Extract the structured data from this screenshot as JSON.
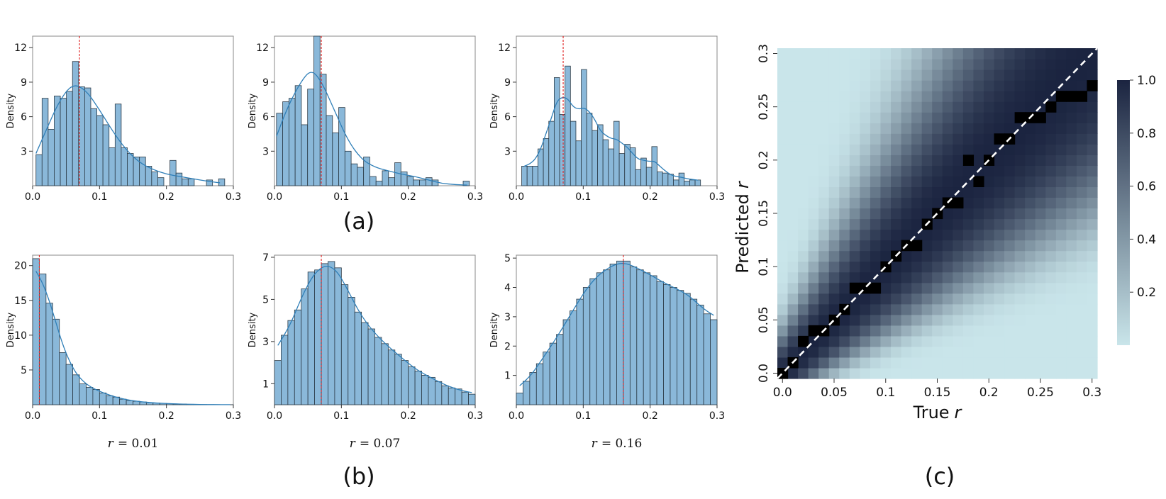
{
  "figure": {
    "panel_labels": [
      "(a)",
      "(b)",
      "(c)"
    ],
    "colors": {
      "bar_fill": "#8ab8d9",
      "bar_edge": "#2b3a46",
      "kde_line": "#2f7fb8",
      "mean_line": "#e02020",
      "axis": "#333333",
      "frame": "#888888",
      "diagonal": "#ffffff",
      "cmap_low": "#c9e5ea",
      "cmap_high": "#1b2440",
      "argmax_cell": "#000000"
    }
  },
  "chart_data": [
    {
      "id": "a1",
      "type": "bar",
      "panel": "(a)",
      "ylabel": "Density",
      "xlim": [
        0,
        0.3
      ],
      "ylim": [
        0,
        13
      ],
      "xticks": [
        "0.0",
        "0.1",
        "0.2",
        "0.3"
      ],
      "yticks": [
        "3",
        "6",
        "9",
        "12"
      ],
      "mean": 0.07,
      "bin_start": 0.005,
      "bin_width": 0.0091,
      "values": [
        2.7,
        7.6,
        4.9,
        7.8,
        7.6,
        8.2,
        10.8,
        8.6,
        8.5,
        6.7,
        6.1,
        5.3,
        3.3,
        7.1,
        3.3,
        2.8,
        2.5,
        2.5,
        1.7,
        1.2,
        0.7,
        0,
        2.2,
        1.1,
        0.6,
        0.6,
        0,
        0,
        0.5,
        0,
        0.6
      ],
      "kde": [
        [
          0.005,
          2.8
        ],
        [
          0.02,
          4.8
        ],
        [
          0.04,
          7.4
        ],
        [
          0.06,
          8.9
        ],
        [
          0.08,
          8.3
        ],
        [
          0.1,
          6.6
        ],
        [
          0.12,
          4.7
        ],
        [
          0.14,
          3.1
        ],
        [
          0.16,
          2.0
        ],
        [
          0.18,
          1.4
        ],
        [
          0.2,
          1.0
        ],
        [
          0.22,
          0.8
        ],
        [
          0.24,
          0.6
        ],
        [
          0.26,
          0.4
        ],
        [
          0.28,
          0.25
        ]
      ]
    },
    {
      "id": "a2",
      "type": "bar",
      "panel": "(a)",
      "ylabel": "Density",
      "xlim": [
        0,
        0.3
      ],
      "ylim": [
        0,
        13
      ],
      "xticks": [
        "0.0",
        "0.1",
        "0.2",
        "0.3"
      ],
      "yticks": [
        "3",
        "6",
        "9",
        "12"
      ],
      "mean": 0.07,
      "bin_start": 0.003,
      "bin_width": 0.0093,
      "values": [
        6.3,
        7.3,
        7.6,
        8.7,
        5.3,
        8.4,
        13.2,
        9.7,
        6.1,
        4.6,
        6.8,
        3.0,
        1.9,
        1.6,
        2.5,
        0.8,
        0.4,
        1.3,
        0.7,
        2.0,
        1.2,
        0.8,
        0.5,
        0.5,
        0.7,
        0.5,
        0,
        0,
        0,
        0,
        0.4
      ],
      "kde": [
        [
          0.003,
          4.3
        ],
        [
          0.02,
          6.9
        ],
        [
          0.04,
          9.1
        ],
        [
          0.055,
          10.1
        ],
        [
          0.07,
          9.1
        ],
        [
          0.09,
          6.5
        ],
        [
          0.11,
          3.9
        ],
        [
          0.13,
          2.3
        ],
        [
          0.15,
          1.6
        ],
        [
          0.17,
          1.3
        ],
        [
          0.19,
          1.0
        ],
        [
          0.21,
          0.8
        ],
        [
          0.23,
          0.5
        ],
        [
          0.25,
          0.2
        ],
        [
          0.27,
          0.1
        ],
        [
          0.288,
          0.05
        ]
      ]
    },
    {
      "id": "a3",
      "type": "bar",
      "panel": "(a)",
      "ylabel": "Density",
      "xlim": [
        0,
        0.3
      ],
      "ylim": [
        0,
        13
      ],
      "xticks": [
        "0.0",
        "0.1",
        "0.2",
        "0.3"
      ],
      "yticks": [
        "3",
        "6",
        "9",
        "12"
      ],
      "mean": 0.07,
      "bin_start": 0.008,
      "bin_width": 0.0081,
      "values": [
        1.7,
        1.7,
        1.7,
        3.2,
        4.1,
        5.6,
        9.4,
        6.2,
        10.4,
        5.6,
        3.9,
        10.1,
        6.3,
        4.8,
        5.3,
        4.0,
        3.2,
        5.6,
        2.8,
        3.6,
        3.3,
        1.4,
        2.4,
        1.6,
        3.4,
        1.2,
        1.1,
        1.0,
        0.5,
        1.1,
        0.4,
        0.5,
        0.5
      ]
    },
    {
      "id": "b1",
      "type": "bar",
      "panel": "(b)",
      "ylabel": "Density",
      "xlim": [
        0,
        0.3
      ],
      "ylim": [
        0,
        21.5
      ],
      "xticks": [
        "0.0",
        "0.1",
        "0.2",
        "0.3"
      ],
      "yticks": [
        "5",
        "10",
        "15",
        "20"
      ],
      "mean": 0.01,
      "caption_var": "r",
      "caption": "= 0.01",
      "bin_start": 0.0,
      "bin_width": 0.01,
      "values": [
        21.0,
        18.8,
        14.6,
        12.3,
        7.5,
        5.8,
        4.3,
        3.0,
        2.5,
        2.2,
        1.7,
        1.3,
        1.1,
        0.8,
        0.6,
        0.5,
        0.4,
        0.3,
        0.25,
        0.2,
        0.15,
        0.1,
        0.1,
        0.05,
        0.05,
        0.03,
        0.02,
        0.02,
        0.01,
        0.01
      ]
    },
    {
      "id": "b2",
      "type": "bar",
      "panel": "(b)",
      "ylabel": "Density",
      "xlim": [
        0,
        0.3
      ],
      "ylim": [
        0,
        7.1
      ],
      "xticks": [
        "0.0",
        "0.1",
        "0.2",
        "0.3"
      ],
      "yticks": [
        "1",
        "3",
        "5",
        "7"
      ],
      "mean": 0.07,
      "caption_var": "r",
      "caption": "= 0.07",
      "bin_start": 0.0,
      "bin_width": 0.01,
      "values": [
        2.1,
        3.3,
        4.0,
        4.5,
        5.5,
        6.3,
        6.4,
        6.7,
        6.8,
        6.5,
        5.7,
        5.1,
        4.4,
        3.9,
        3.6,
        3.2,
        2.9,
        2.6,
        2.4,
        2.1,
        1.8,
        1.6,
        1.4,
        1.3,
        1.1,
        0.9,
        0.8,
        0.75,
        0.6,
        0.5
      ]
    },
    {
      "id": "b3",
      "type": "bar",
      "panel": "(b)",
      "ylabel": "Density",
      "xlim": [
        0,
        0.3
      ],
      "ylim": [
        0,
        5.1
      ],
      "xticks": [
        "0.0",
        "0.1",
        "0.2",
        "0.3"
      ],
      "yticks": [
        "1",
        "2",
        "3",
        "4",
        "5"
      ],
      "mean": 0.16,
      "caption_var": "r",
      "caption": "= 0.16",
      "bin_start": 0.0,
      "bin_width": 0.01,
      "values": [
        0.4,
        0.8,
        1.1,
        1.4,
        1.8,
        2.1,
        2.4,
        2.9,
        3.2,
        3.6,
        4.0,
        4.3,
        4.5,
        4.6,
        4.8,
        4.9,
        4.9,
        4.7,
        4.6,
        4.5,
        4.4,
        4.2,
        4.1,
        4.0,
        3.9,
        3.8,
        3.6,
        3.4,
        3.1,
        2.9
      ]
    },
    {
      "id": "c",
      "type": "heatmap",
      "panel": "(c)",
      "xlabel_prefix": "True",
      "ylabel_prefix": "Predicted",
      "axis_var": "r",
      "xlim": [
        0,
        0.3
      ],
      "ylim": [
        0,
        0.3
      ],
      "xticks": [
        "0.0",
        "0.05",
        "0.1",
        "0.15",
        "0.2",
        "0.25",
        "0.3"
      ],
      "yticks": [
        "0.0",
        "0.05",
        "0.1",
        "0.15",
        "0.2",
        "0.25",
        "0.3"
      ],
      "grid_size": 31,
      "value_range": [
        0,
        1
      ],
      "colorbar_ticks": [
        "0.2",
        "0.4",
        "0.6",
        "0.8",
        "1.0"
      ],
      "colorbar_range": [
        0.0,
        1.0
      ],
      "argmax_cells": [
        [
          0,
          0
        ],
        [
          1,
          1
        ],
        [
          2,
          3
        ],
        [
          3,
          4
        ],
        [
          4,
          4
        ],
        [
          5,
          5
        ],
        [
          6,
          6
        ],
        [
          7,
          8
        ],
        [
          8,
          8
        ],
        [
          9,
          8
        ],
        [
          10,
          10
        ],
        [
          11,
          11
        ],
        [
          12,
          12
        ],
        [
          13,
          12
        ],
        [
          14,
          14
        ],
        [
          15,
          15
        ],
        [
          16,
          16
        ],
        [
          17,
          16
        ],
        [
          18,
          20
        ],
        [
          19,
          18
        ],
        [
          20,
          20
        ],
        [
          21,
          22
        ],
        [
          22,
          22
        ],
        [
          23,
          24
        ],
        [
          24,
          24
        ],
        [
          25,
          24
        ],
        [
          26,
          25
        ],
        [
          27,
          26
        ],
        [
          28,
          26
        ],
        [
          29,
          26
        ],
        [
          30,
          27
        ]
      ],
      "diagonal": "dashed"
    }
  ]
}
